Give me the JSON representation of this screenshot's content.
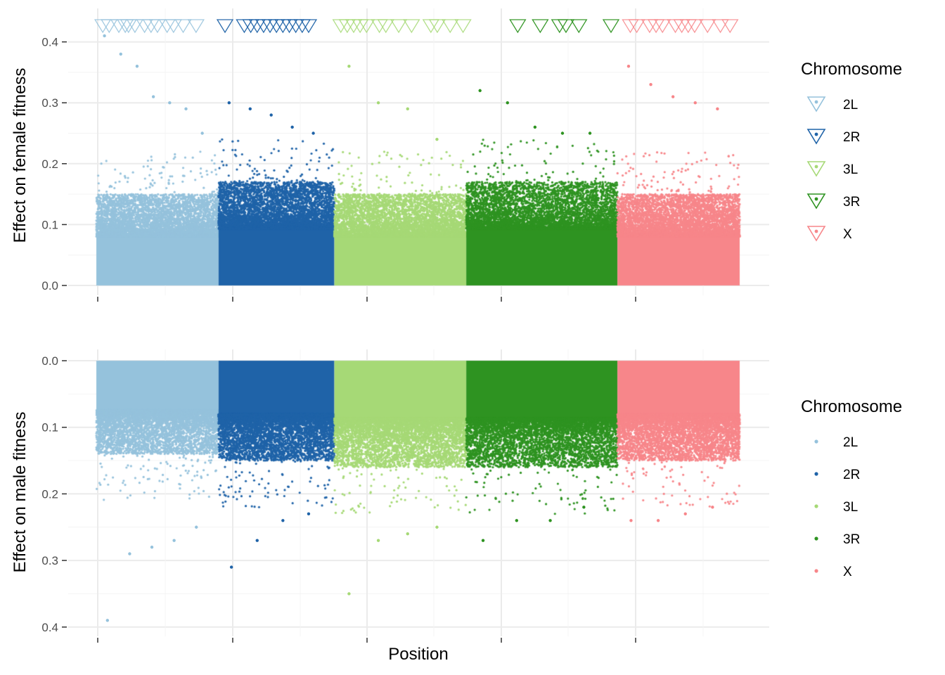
{
  "chart_data": [
    {
      "type": "scatter",
      "panel": "top",
      "ylabel": "Effect on female fitness",
      "xlabel": "",
      "ylim": [
        0,
        0.4
      ],
      "yticks": [
        "0.0",
        "0.1",
        "0.2",
        "0.3",
        "0.4"
      ],
      "grid": true,
      "legend": {
        "title": "Chromosome",
        "placement": "right",
        "marker": "triangle-down-with-dot",
        "entries": [
          "2L",
          "2R",
          "3L",
          "3R",
          "X"
        ]
      },
      "series": [
        {
          "name": "2L",
          "color": "#95c2dc",
          "x_range": [
            0,
            0.19
          ],
          "bulk_max": 0.13,
          "outliers": [
            0.41,
            0.38,
            0.36,
            0.31,
            0.3,
            0.29,
            0.25
          ]
        },
        {
          "name": "2R",
          "color": "#1f63a8",
          "x_range": [
            0.19,
            0.37
          ],
          "bulk_max": 0.15,
          "outliers": [
            0.3,
            0.29,
            0.28,
            0.26,
            0.25
          ]
        },
        {
          "name": "3L",
          "color": "#a6d976",
          "x_range": [
            0.37,
            0.575
          ],
          "bulk_max": 0.13,
          "outliers": [
            0.36,
            0.3,
            0.29,
            0.24
          ]
        },
        {
          "name": "3R",
          "color": "#2e9321",
          "x_range": [
            0.575,
            0.81
          ],
          "bulk_max": 0.15,
          "outliers": [
            0.32,
            0.3,
            0.26,
            0.25,
            0.25
          ]
        },
        {
          "name": "X",
          "color": "#f7868a",
          "x_range": [
            0.81,
            1.0
          ],
          "bulk_max": 0.13,
          "outliers": [
            0.36,
            0.33,
            0.31,
            0.3,
            0.29
          ]
        }
      ],
      "markers_x": {
        "2L": [
          0.01,
          0.02,
          0.035,
          0.045,
          0.05,
          0.06,
          0.075,
          0.085,
          0.095,
          0.11,
          0.12,
          0.135,
          0.155
        ],
        "2R": [
          0.2,
          0.23,
          0.24,
          0.25,
          0.26,
          0.27,
          0.28,
          0.29,
          0.3,
          0.31,
          0.32,
          0.33
        ],
        "3L": [
          0.38,
          0.39,
          0.4,
          0.41,
          0.42,
          0.44,
          0.45,
          0.47,
          0.49,
          0.52,
          0.53,
          0.55,
          0.57
        ],
        "3R": [
          0.655,
          0.69,
          0.72,
          0.73,
          0.75,
          0.8
        ],
        "X": [
          0.83,
          0.84,
          0.86,
          0.87,
          0.88,
          0.9,
          0.91,
          0.92,
          0.93,
          0.95,
          0.97,
          0.985
        ]
      }
    },
    {
      "type": "scatter",
      "panel": "bottom",
      "ylabel": "Effect on male fitness",
      "xlabel": "Position",
      "ylim": [
        0,
        0.4
      ],
      "y_reversed": true,
      "yticks": [
        "0.0",
        "0.1",
        "0.2",
        "0.3",
        "0.4"
      ],
      "grid": true,
      "legend": {
        "title": "Chromosome",
        "placement": "right",
        "marker": "dot",
        "entries": [
          "2L",
          "2R",
          "3L",
          "3R",
          "X"
        ]
      },
      "series": [
        {
          "name": "2L",
          "color": "#95c2dc",
          "x_range": [
            0,
            0.19
          ],
          "bulk_max": 0.12,
          "outliers": [
            0.39,
            0.29,
            0.28,
            0.27,
            0.25
          ]
        },
        {
          "name": "2R",
          "color": "#1f63a8",
          "x_range": [
            0.19,
            0.37
          ],
          "bulk_max": 0.13,
          "outliers": [
            0.31,
            0.27,
            0.24,
            0.23
          ]
        },
        {
          "name": "3L",
          "color": "#a6d976",
          "x_range": [
            0.37,
            0.575
          ],
          "bulk_max": 0.14,
          "outliers": [
            0.35,
            0.27,
            0.26,
            0.25
          ]
        },
        {
          "name": "3R",
          "color": "#2e9321",
          "x_range": [
            0.575,
            0.81
          ],
          "bulk_max": 0.14,
          "outliers": [
            0.27,
            0.24,
            0.24,
            0.22
          ]
        },
        {
          "name": "X",
          "color": "#f7868a",
          "x_range": [
            0.81,
            1.0
          ],
          "bulk_max": 0.13,
          "outliers": [
            0.24,
            0.24,
            0.23,
            0.22
          ]
        }
      ]
    }
  ],
  "legends": {
    "top": {
      "title": "Chromosome",
      "items": [
        "2L",
        "2R",
        "3L",
        "3R",
        "X"
      ]
    },
    "bottom": {
      "title": "Chromosome",
      "items": [
        "2L",
        "2R",
        "3L",
        "3R",
        "X"
      ]
    }
  },
  "axis_titles": {
    "top_y": "Effect on female fitness",
    "bottom_y": "Effect on male fitness",
    "x": "Position"
  },
  "colors": {
    "2L": "#95c2dc",
    "2R": "#1f63a8",
    "3L": "#a6d976",
    "3R": "#2e9321",
    "X": "#f7868a",
    "grid_major": "#ebebeb",
    "grid_minor": "#f4f4f4"
  }
}
